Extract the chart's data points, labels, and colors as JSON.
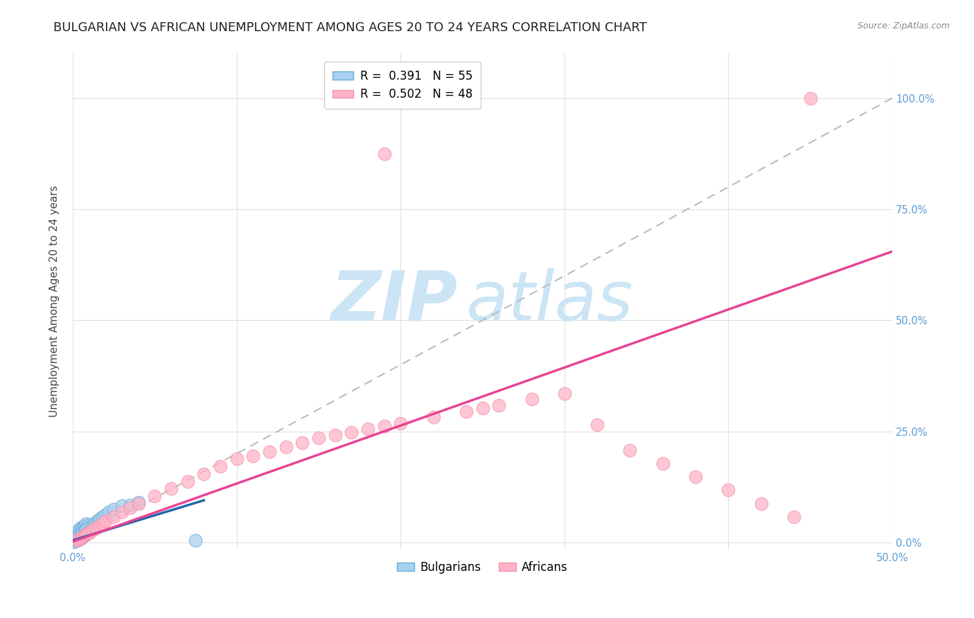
{
  "title": "BULGARIAN VS AFRICAN UNEMPLOYMENT AMONG AGES 20 TO 24 YEARS CORRELATION CHART",
  "source": "Source: ZipAtlas.com",
  "ylabel": "Unemployment Among Ages 20 to 24 years",
  "xlim": [
    0.0,
    0.5
  ],
  "ylim": [
    -0.015,
    1.1
  ],
  "bulgarian_R": 0.391,
  "bulgarian_N": 55,
  "african_R": 0.502,
  "african_N": 48,
  "bulgarian_color": "#a8d0f0",
  "african_color": "#ffb3c6",
  "bulgarian_edge_color": "#6aaed6",
  "african_edge_color": "#f48fb1",
  "bulgarian_line_color": "#2166ac",
  "african_line_color": "#e84393",
  "ref_line_color": "#bbbbbb",
  "watermark_zip": "ZIP",
  "watermark_atlas": "atlas",
  "watermark_color": "#cce5f5",
  "bg_color": "#ffffff",
  "grid_color": "#e0e0e0",
  "title_fontsize": 13,
  "axis_label_fontsize": 11,
  "tick_fontsize": 10.5,
  "legend_fontsize": 12,
  "tick_color": "#5b9bd5",
  "bulgarians_x": [
    0.001,
    0.002,
    0.002,
    0.003,
    0.003,
    0.003,
    0.004,
    0.004,
    0.004,
    0.005,
    0.005,
    0.005,
    0.005,
    0.006,
    0.006,
    0.006,
    0.007,
    0.007,
    0.007,
    0.008,
    0.008,
    0.008,
    0.009,
    0.009,
    0.01,
    0.01,
    0.011,
    0.012,
    0.013,
    0.015,
    0.016,
    0.017,
    0.018,
    0.02,
    0.022,
    0.025,
    0.03,
    0.035,
    0.04,
    0.001,
    0.002,
    0.003,
    0.004,
    0.004,
    0.005,
    0.005,
    0.006,
    0.006,
    0.007,
    0.007,
    0.008,
    0.008,
    0.009,
    0.01,
    0.075
  ],
  "bulgarians_y": [
    0.005,
    0.008,
    0.015,
    0.01,
    0.018,
    0.025,
    0.012,
    0.02,
    0.03,
    0.015,
    0.022,
    0.028,
    0.035,
    0.018,
    0.025,
    0.032,
    0.02,
    0.028,
    0.038,
    0.022,
    0.032,
    0.042,
    0.025,
    0.035,
    0.028,
    0.04,
    0.032,
    0.038,
    0.042,
    0.048,
    0.052,
    0.055,
    0.058,
    0.062,
    0.068,
    0.075,
    0.082,
    0.085,
    0.09,
    0.002,
    0.005,
    0.008,
    0.006,
    0.015,
    0.01,
    0.018,
    0.012,
    0.022,
    0.015,
    0.025,
    0.018,
    0.028,
    0.02,
    0.025,
    0.005
  ],
  "africans_x": [
    0.003,
    0.004,
    0.005,
    0.006,
    0.007,
    0.008,
    0.009,
    0.01,
    0.012,
    0.014,
    0.016,
    0.018,
    0.02,
    0.025,
    0.03,
    0.035,
    0.04,
    0.05,
    0.06,
    0.07,
    0.08,
    0.09,
    0.1,
    0.11,
    0.12,
    0.13,
    0.14,
    0.15,
    0.16,
    0.17,
    0.18,
    0.19,
    0.2,
    0.22,
    0.24,
    0.25,
    0.26,
    0.28,
    0.3,
    0.32,
    0.34,
    0.36,
    0.38,
    0.4,
    0.42,
    0.44,
    0.19,
    0.45
  ],
  "africans_y": [
    0.005,
    0.008,
    0.01,
    0.012,
    0.015,
    0.018,
    0.02,
    0.022,
    0.028,
    0.032,
    0.038,
    0.042,
    0.048,
    0.058,
    0.068,
    0.078,
    0.088,
    0.105,
    0.122,
    0.138,
    0.155,
    0.172,
    0.188,
    0.195,
    0.205,
    0.215,
    0.225,
    0.235,
    0.242,
    0.248,
    0.255,
    0.262,
    0.268,
    0.282,
    0.295,
    0.302,
    0.308,
    0.322,
    0.335,
    0.265,
    0.208,
    0.178,
    0.148,
    0.118,
    0.088,
    0.058,
    0.875,
    1.0
  ],
  "bulg_line_x": [
    0.0,
    0.08
  ],
  "bulg_line_y": [
    0.005,
    0.095
  ],
  "afri_line_x": [
    0.0,
    0.5
  ],
  "afri_line_y": [
    0.002,
    0.655
  ]
}
